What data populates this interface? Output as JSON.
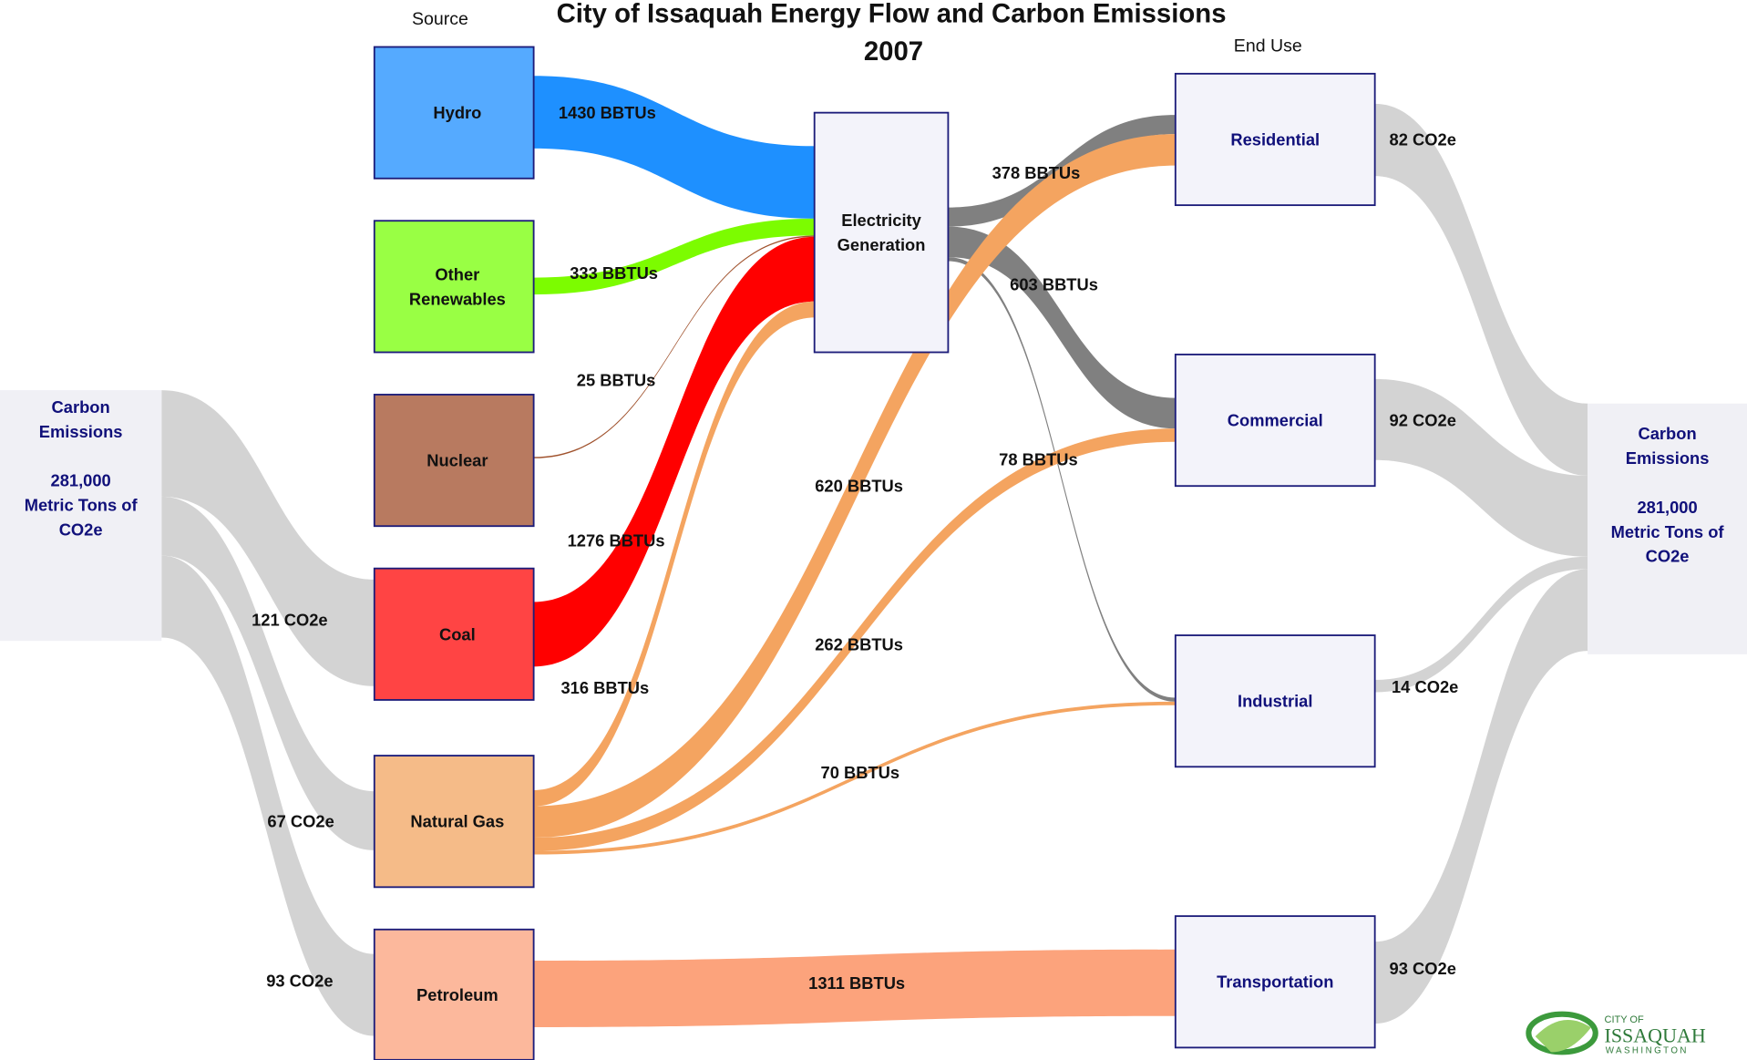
{
  "title": [
    "City of Issaquah Energy Flow and Carbon Emissions",
    "2007"
  ],
  "headings": [
    "Source",
    "End Use"
  ],
  "nodes": [
    {
      "lines": [
        "Hydro"
      ],
      "color": "#55aaff"
    },
    {
      "lines": [
        "Other",
        "Renewables"
      ],
      "color": "#99ff44"
    },
    {
      "lines": [
        "Nuclear"
      ],
      "color": "#b87a60"
    },
    {
      "lines": [
        "Coal"
      ],
      "color": "#ff4444"
    },
    {
      "lines": [
        "Natural Gas"
      ],
      "color": "#f5bb88"
    },
    {
      "lines": [
        "Petroleum"
      ],
      "color": "#fcb89c"
    },
    {
      "lines": [
        "Electricity",
        "Generation"
      ],
      "color": "#f3f3fa"
    },
    {
      "lines": [
        "Residential"
      ],
      "color": "#f3f3fa"
    },
    {
      "lines": [
        "Commercial"
      ],
      "color": "#f3f3fa"
    },
    {
      "lines": [
        "Industrial"
      ],
      "color": "#f3f3fa"
    },
    {
      "lines": [
        "Transportation"
      ],
      "color": "#f3f3fa"
    }
  ],
  "flows": [
    {
      "source": "Hydro",
      "target": "Electricity Generation",
      "value": 1430,
      "label": "1430 BBTUs",
      "color": "#1e90ff"
    },
    {
      "source": "Other Renewables",
      "target": "Electricity Generation",
      "value": 333,
      "label": "333 BBTUs",
      "color": "#7cfc00"
    },
    {
      "source": "Nuclear",
      "target": "Electricity Generation",
      "value": 25,
      "label": "25 BBTUs",
      "color": "#a0522d"
    },
    {
      "source": "Coal",
      "target": "Electricity Generation",
      "value": 1276,
      "label": "1276 BBTUs",
      "color": "#ff0000"
    },
    {
      "source": "Natural Gas",
      "target": "Electricity Generation",
      "value": 316,
      "label": "316 BBTUs",
      "color": "#f4a460"
    },
    {
      "source": "Electricity Generation",
      "target": "Residential",
      "value": 378,
      "label": "378 BBTUs",
      "color": "#808080"
    },
    {
      "source": "Electricity Generation",
      "target": "Commercial",
      "value": 603,
      "label": "603 BBTUs",
      "color": "#808080"
    },
    {
      "source": "Electricity Generation",
      "target": "Industrial",
      "value": 78,
      "label": "78 BBTUs",
      "color": "#808080"
    },
    {
      "source": "Natural Gas",
      "target": "Residential",
      "value": 620,
      "label": "620 BBTUs",
      "color": "#f4a460"
    },
    {
      "source": "Natural Gas",
      "target": "Commercial",
      "value": 262,
      "label": "262 BBTUs",
      "color": "#f4a460"
    },
    {
      "source": "Natural Gas",
      "target": "Industrial",
      "value": 70,
      "label": "70 BBTUs",
      "color": "#f4a460"
    },
    {
      "source": "Petroleum",
      "target": "Transportation",
      "value": 1311,
      "label": "1311 BBTUs",
      "color": "#fca37c"
    }
  ],
  "emissions": {
    "color": "#d3d3d3",
    "left": {
      "lines": [
        "Carbon",
        "Emissions"
      ],
      "total": [
        "281,000",
        "Metric Tons of",
        "CO2e"
      ],
      "color": "#f0f0f5",
      "flows": [
        {
          "node": "Coal",
          "value": 121,
          "label": "121 CO2e"
        },
        {
          "node": "Natural Gas",
          "value": 67,
          "label": "67 CO2e"
        },
        {
          "node": "Petroleum",
          "value": 93,
          "label": "93 CO2e"
        }
      ]
    },
    "right": {
      "lines": [
        "Carbon",
        "Emissions"
      ],
      "total": [
        "281,000",
        "Metric Tons of",
        "CO2e"
      ],
      "color": "#f0f0f5",
      "flows": [
        {
          "node": "Residential",
          "value": 82,
          "label": "82 CO2e"
        },
        {
          "node": "Commercial",
          "value": 92,
          "label": "92 CO2e"
        },
        {
          "node": "Industrial",
          "value": 14,
          "label": "14 CO2e"
        },
        {
          "node": "Transportation",
          "value": 93,
          "label": "93 CO2e"
        }
      ]
    }
  },
  "logo": [
    "CITY OF",
    "ISSAQUAH",
    "WASHINGTON"
  ]
}
